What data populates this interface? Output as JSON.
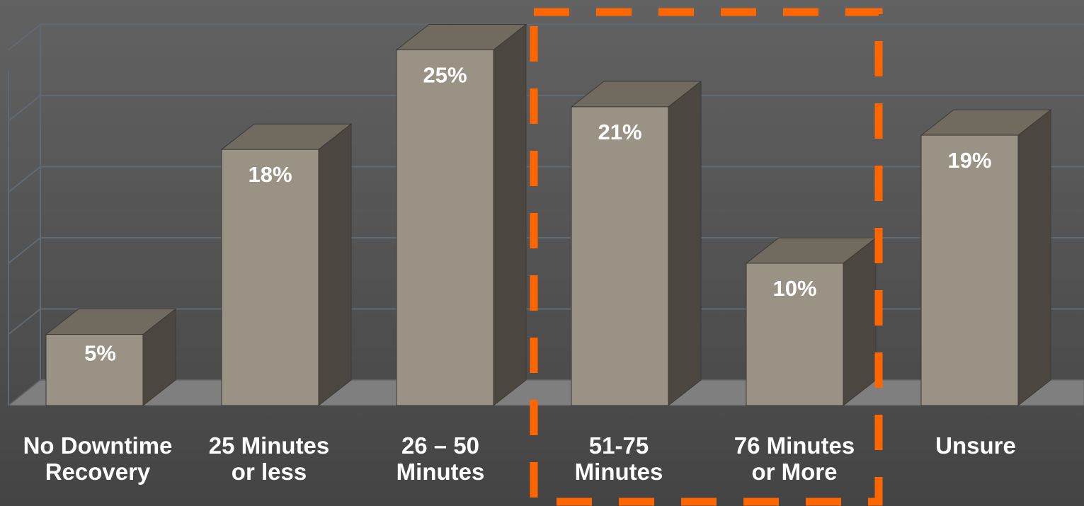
{
  "chart_data": {
    "type": "bar",
    "categories": [
      "No Downtime\nRecovery",
      "25 Minutes\nor less",
      "26 – 50\nMinutes",
      "51-75\nMinutes",
      "76 Minutes\nor More",
      "Unsure"
    ],
    "values": [
      5,
      18,
      25,
      21,
      10,
      19
    ],
    "data_labels": [
      "5%",
      "18%",
      "25%",
      "21%",
      "10%",
      "19%"
    ],
    "ylim": [
      0,
      25
    ],
    "grid": true,
    "highlight": {
      "categories": [
        "51-75\nMinutes",
        "76 Minutes\nor More"
      ],
      "style": "dashed box"
    },
    "colors": {
      "bar_front": "#9a9385",
      "bar_side": "#4b4740",
      "bar_top": "#706a5f",
      "floor": "#7f7f7f",
      "gridline": "#606a74",
      "highlight": "#ff6600",
      "text": "#ffffff"
    }
  }
}
